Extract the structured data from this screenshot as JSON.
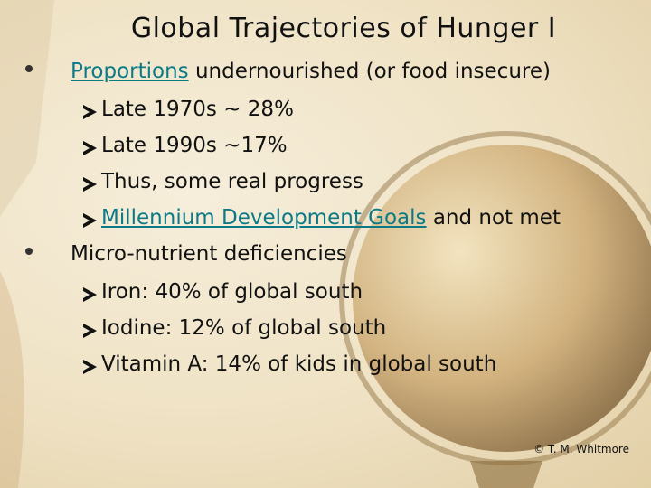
{
  "slide": {
    "title": "Global Trajectories of Hunger I",
    "bullets": [
      {
        "link": "Proportions",
        "text": "undernourished (or food insecure)",
        "items": [
          {
            "text": "Late 1970s ~ 28%"
          },
          {
            "text": "Late 1990s ~17%"
          },
          {
            "text": "Thus, some real progress"
          },
          {
            "link": "Millennium Development Goals",
            "text": "and not met"
          }
        ]
      },
      {
        "text": "Micro-nutrient deficiencies",
        "items": [
          {
            "text": "Iron: 40% of global south"
          },
          {
            "text": "Iodine: 12% of global south"
          },
          {
            "text": "Vitamin A: 14% of kids in global south"
          }
        ]
      }
    ],
    "footer": "© T. M. Whitmore"
  }
}
